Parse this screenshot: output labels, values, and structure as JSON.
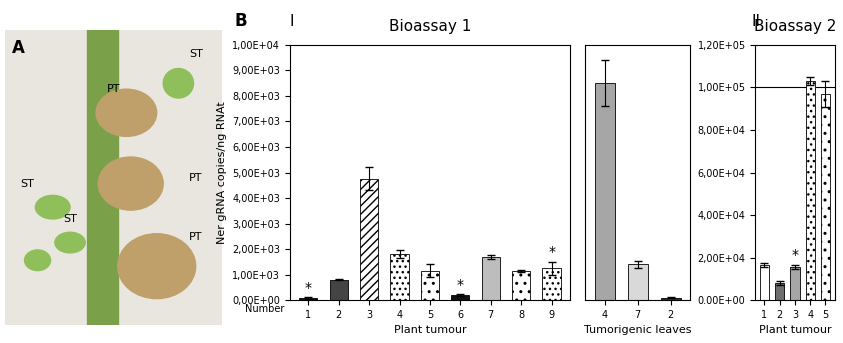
{
  "photo": {
    "panel": "A",
    "labels": [
      "ST",
      "PT",
      "PT",
      "ST",
      "ST",
      "PT"
    ]
  },
  "chart_panel": "B",
  "chart_data": [
    {
      "type": "bar",
      "panel": "I",
      "title": "Bioassay 1",
      "x_label": "Plant tumour",
      "y_label": "Ner gRNA copies/ng RNAt",
      "category_axis_name": "Number",
      "categories": [
        "1",
        "2",
        "3",
        "4",
        "5",
        "6",
        "7",
        "8",
        "9"
      ],
      "values": [
        80,
        800,
        4750,
        1800,
        1150,
        200,
        1700,
        1150,
        1250
      ],
      "errors": [
        30,
        30,
        450,
        150,
        250,
        30,
        80,
        50,
        250
      ],
      "colors": [
        "#111111",
        "#444444",
        "#ffffff",
        "#ffffff",
        "#ffffff",
        "#111111",
        "#bdbdbd",
        "#ffffff",
        "#ffffff"
      ],
      "annotations": [
        {
          "category": "1",
          "text": "*"
        },
        {
          "category": "6",
          "text": "*"
        },
        {
          "category": "9",
          "text": "*"
        }
      ],
      "ylim": [
        0,
        10000
      ],
      "yticks": [
        {
          "value": 0,
          "label": "0,00E+00"
        },
        {
          "value": 1000,
          "label": "1,00E+03"
        },
        {
          "value": 2000,
          "label": "2,00E+03"
        },
        {
          "value": 3000,
          "label": "3,00E+03"
        },
        {
          "value": 4000,
          "label": "4,00E+03"
        },
        {
          "value": 5000,
          "label": "5,00E+03"
        },
        {
          "value": 6000,
          "label": "6,00E+03"
        },
        {
          "value": 7000,
          "label": "7,00E+03"
        },
        {
          "value": 8000,
          "label": "8,00E+03"
        },
        {
          "value": 9000,
          "label": "9,00E+03"
        },
        {
          "value": 10000,
          "label": "1,00E+04"
        }
      ]
    },
    {
      "type": "bar",
      "x_label": "Tumorigenic leaves",
      "categories": [
        "4",
        "7",
        "2"
      ],
      "values": [
        8500,
        1400,
        100
      ],
      "errors": [
        900,
        150,
        20
      ],
      "colors": [
        "#a6a6a6",
        "#d9d9d9",
        "#333333"
      ],
      "ylim": [
        0,
        10000
      ],
      "yticks": [
        0,
        1000,
        2000,
        3000,
        4000,
        5000,
        6000,
        7000,
        8000,
        9000,
        10000
      ],
      "tick_labels": "x"
    },
    {
      "type": "bar",
      "panel": "II",
      "title": "Bioassay 2",
      "x_label": "Plant tumour",
      "categories": [
        "1",
        "2",
        "3",
        "4",
        "5"
      ],
      "values": [
        16500,
        8000,
        15500,
        103000,
        97000
      ],
      "errors": [
        800,
        1000,
        1000,
        2000,
        6000
      ],
      "colors": [
        "#ffffff",
        "#6e6e6e",
        "#a6a6a6",
        "#ffffff",
        "#ffffff"
      ],
      "annotations": [
        {
          "category": "3",
          "text": "*"
        }
      ],
      "reference_line": 100000,
      "ylim": [
        0,
        120000
      ],
      "yticks": [
        {
          "value": 0,
          "label": "0.00E+00"
        },
        {
          "value": 20000,
          "label": "2,00E+04"
        },
        {
          "value": 40000,
          "label": "4,00E+04"
        },
        {
          "value": 60000,
          "label": "6,00E+04"
        },
        {
          "value": 80000,
          "label": "8,00E+04"
        },
        {
          "value": 100000,
          "label": "1,00E+05"
        },
        {
          "value": 120000,
          "label": "1,20E+05"
        }
      ]
    }
  ]
}
